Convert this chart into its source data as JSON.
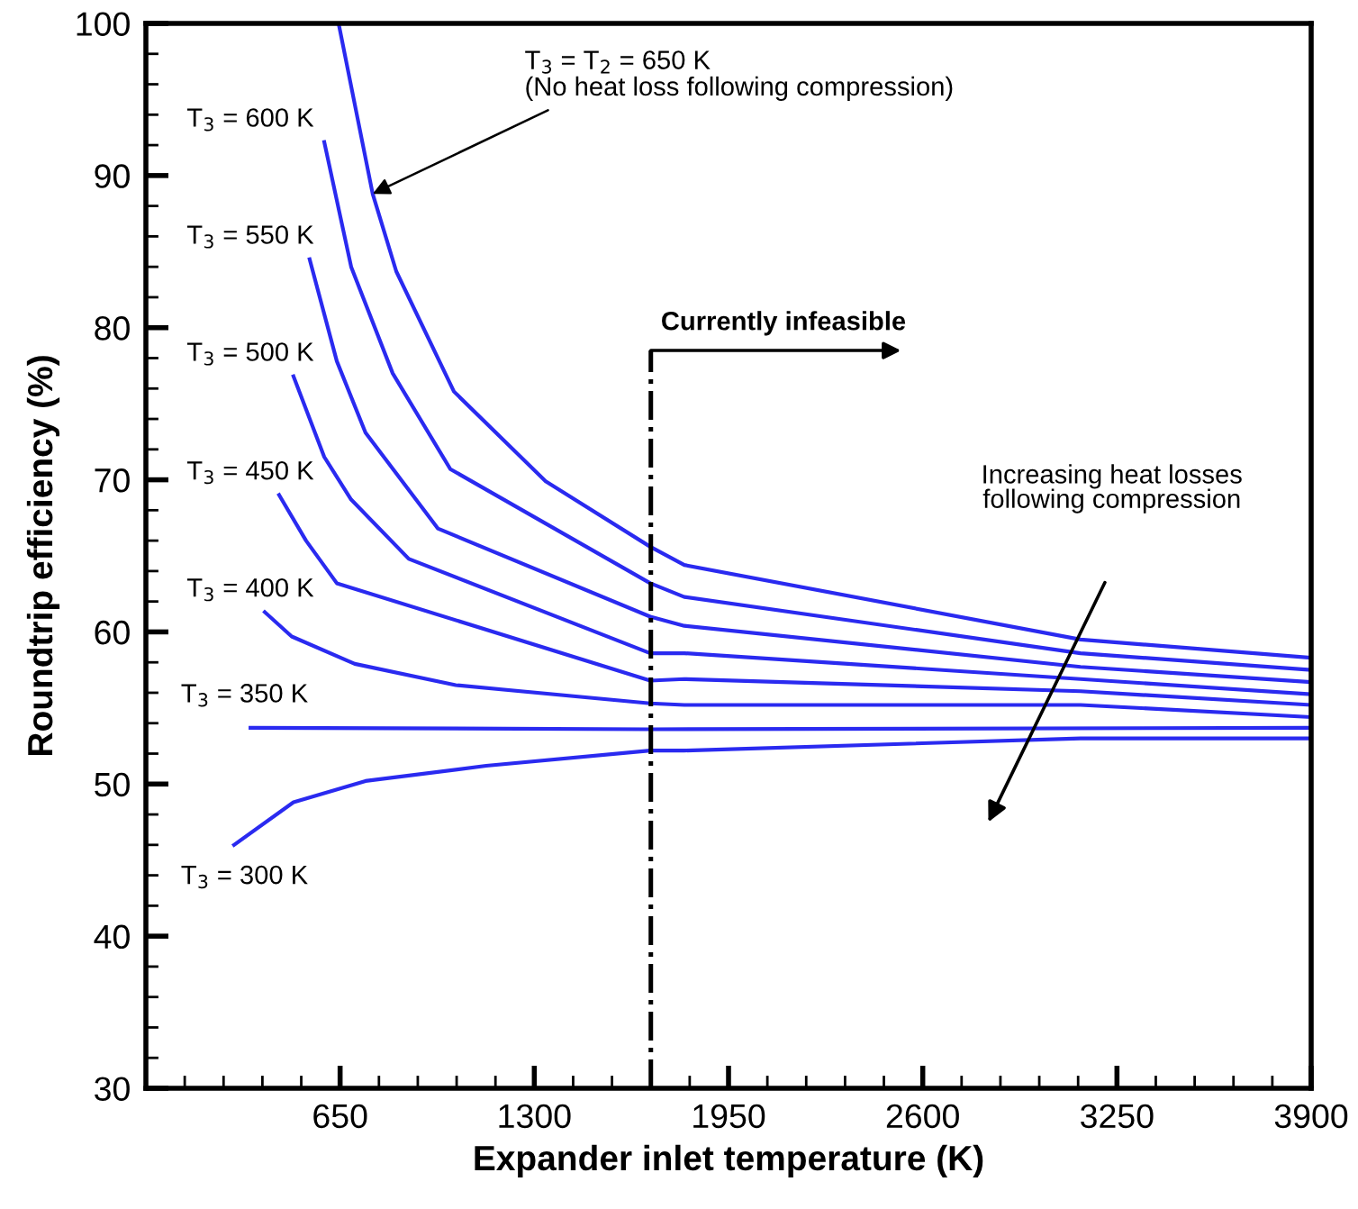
{
  "chart_data": {
    "type": "line",
    "xlabel": "Expander inlet temperature (K)",
    "ylabel": "Roundtrip efficiency (%)",
    "xlim": [
      0,
      3900
    ],
    "ylim": [
      30,
      100
    ],
    "xticks": [
      650,
      1300,
      1950,
      2600,
      3250,
      3900
    ],
    "yticks": [
      30,
      40,
      50,
      60,
      70,
      80,
      90,
      100
    ],
    "grid": false,
    "legend": false,
    "marker": "none",
    "line_style": "solid",
    "series": [
      {
        "color": "#2a2af0",
        "x": [
          645,
          759,
          838,
          1031,
          1338,
          1688,
          1802,
          3128,
          3900
        ],
        "values": [
          100,
          88.8,
          83.7,
          75.8,
          69.9,
          65.6,
          64.4,
          59.5,
          58.3
        ]
      },
      {
        "name": "T$_{3}$ = 600 K",
        "color": "#2a2af0",
        "x": [
          597,
          687,
          826,
          1019,
          1688,
          1802,
          3128,
          3900
        ],
        "values": [
          92.2,
          84.0,
          77.0,
          70.7,
          63.2,
          62.3,
          58.6,
          57.5
        ]
      },
      {
        "name": "T$_{3}$ = 550 K",
        "color": "#2a2af0",
        "x": [
          548,
          639,
          735,
          977,
          1688,
          1802,
          3128,
          3900
        ],
        "values": [
          84.5,
          77.8,
          73.1,
          66.8,
          61.0,
          60.4,
          57.7,
          56.7
        ]
      },
      {
        "name": "T$_{3}$ = 500 K",
        "color": "#2a2af0",
        "x": [
          494,
          597,
          687,
          880,
          1688,
          1802,
          3128,
          3900
        ],
        "values": [
          76.8,
          71.5,
          68.7,
          64.8,
          58.6,
          58.6,
          56.9,
          55.9
        ]
      },
      {
        "name": "T$_{3}$ = 450 K",
        "color": "#2a2af0",
        "x": [
          446,
          536,
          639,
          1688,
          1802,
          3128,
          3900
        ],
        "values": [
          69.0,
          66.0,
          63.2,
          56.8,
          56.9,
          56.1,
          55.2
        ]
      },
      {
        "name": "T$_{3}$ = 400 K",
        "color": "#2a2af0",
        "x": [
          398,
          488,
          699,
          1037,
          1688,
          1802,
          3128,
          3900
        ],
        "values": [
          61.3,
          59.7,
          57.9,
          56.5,
          55.3,
          55.2,
          55.2,
          54.4
        ]
      },
      {
        "name": "T$_{3}$ = 350 K",
        "color": "#2a2af0",
        "x": [
          350,
          1688,
          3900
        ],
        "values": [
          53.7,
          53.6,
          53.7
        ]
      },
      {
        "name": "T$_{3}$ = 300 K",
        "color": "#2a2af0",
        "x": [
          295,
          494,
          735,
          1139,
          1688,
          1802,
          3128,
          3900
        ],
        "values": [
          46.0,
          48.8,
          50.2,
          51.2,
          52.2,
          52.2,
          53.0,
          53.0
        ]
      }
    ],
    "ref_lines": [
      {
        "axis": "x",
        "value": 1690,
        "color": "#000000",
        "line_style": "dashdot"
      }
    ],
    "annotations": [
      {
        "text": "T$_{3}$ = T$_{2}$ = 650 K\n(No heat loss following compression)",
        "x": 759,
        "y": 88.8
      },
      {
        "text": "Currently infeasible",
        "x": 1690,
        "y": 78.5
      },
      "Increasing heat losses\nfollowing compression"
    ]
  }
}
